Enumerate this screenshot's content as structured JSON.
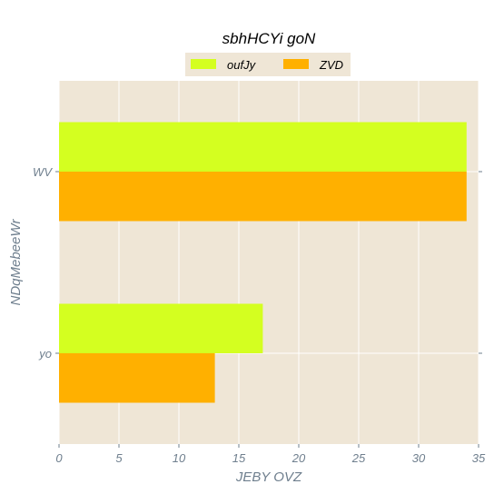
{
  "chart_data": {
    "type": "bar",
    "orientation": "horizontal",
    "title": "sbhHCYi goN",
    "xlabel": "JEBY OVZ",
    "ylabel": "NDqMebeeWr",
    "categories": [
      "WV",
      "yo"
    ],
    "series": [
      {
        "name": "oufJy",
        "values": [
          34,
          17
        ],
        "color": "#d4ff20"
      },
      {
        "name": "ZVD",
        "values": [
          34,
          13
        ],
        "color": "#ffb000"
      }
    ],
    "xlim": [
      0,
      35
    ],
    "xticks": [
      0,
      5,
      10,
      15,
      20,
      25,
      30,
      35
    ],
    "grid": true,
    "legend_position": "top-center",
    "background_color": "#efe6d6"
  }
}
